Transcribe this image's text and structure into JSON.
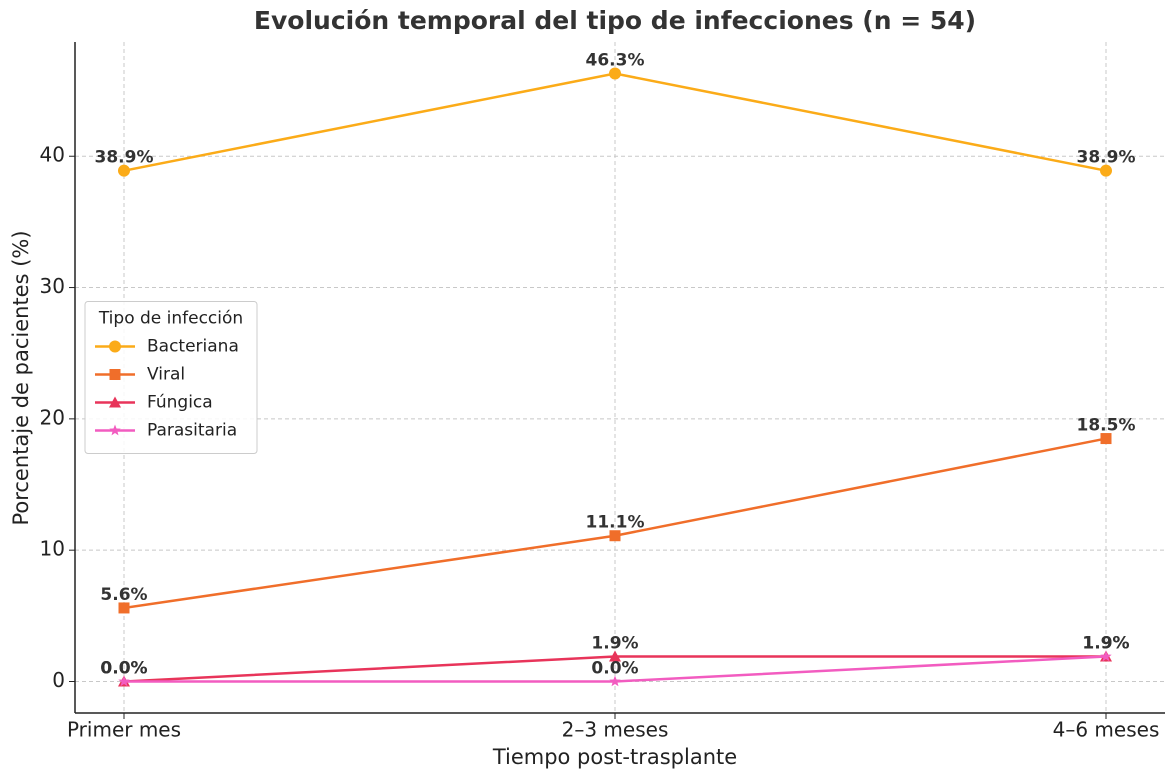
{
  "chart_data": {
    "type": "line",
    "title": "Evolución temporal del tipo de infecciones (n = 54)",
    "xlabel": "Tiempo post-trasplante",
    "ylabel": "Porcentaje de pacientes (%)",
    "categories": [
      "Primer mes",
      "2–3 meses",
      "4–6 meses"
    ],
    "series": [
      {
        "name": "Bacteriana",
        "color": "#fbab18",
        "marker": "circle",
        "values": [
          38.9,
          46.3,
          38.9
        ],
        "value_labels": [
          "38.9%",
          "46.3%",
          "38.9%"
        ]
      },
      {
        "name": "Viral",
        "color": "#f06e2a",
        "marker": "square",
        "values": [
          5.6,
          11.1,
          18.5
        ],
        "value_labels": [
          "5.6%",
          "11.1%",
          "18.5%"
        ]
      },
      {
        "name": "Fúngica",
        "color": "#e8345a",
        "marker": "triangle",
        "values": [
          0,
          1.9,
          1.9
        ],
        "value_labels": [
          "0.0%",
          "1.9%",
          "1.9%"
        ]
      },
      {
        "name": "Parasitaria",
        "color": "#f25cc0",
        "marker": "star",
        "values": [
          0,
          0,
          1.9
        ],
        "value_labels": [
          "0.0%",
          "0.0%",
          "1.9%"
        ]
      }
    ],
    "ylim": [
      -2.4,
      48.7
    ],
    "yticks": [
      0,
      10,
      20,
      30,
      40
    ],
    "grid": true,
    "legend": {
      "title": "Tipo de infección",
      "position": "center left"
    }
  }
}
